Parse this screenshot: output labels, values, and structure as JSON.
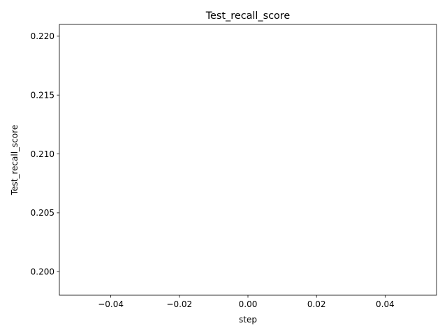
{
  "chart_data": {
    "type": "line",
    "title": "Test_recall_score",
    "xlabel": "step",
    "ylabel": "Test_recall_score",
    "xlim": [
      -0.055,
      0.055
    ],
    "ylim": [
      0.198,
      0.221
    ],
    "xticks": [
      -0.04,
      -0.02,
      0.0,
      0.02,
      0.04
    ],
    "xtick_labels": [
      "−0.04",
      "−0.02",
      "0.00",
      "0.02",
      "0.04"
    ],
    "yticks": [
      0.2,
      0.205,
      0.21,
      0.215,
      0.22
    ],
    "ytick_labels": [
      "0.200",
      "0.205",
      "0.210",
      "0.215",
      "0.220"
    ],
    "grid": false,
    "series": [
      {
        "x": [],
        "y": []
      }
    ]
  }
}
